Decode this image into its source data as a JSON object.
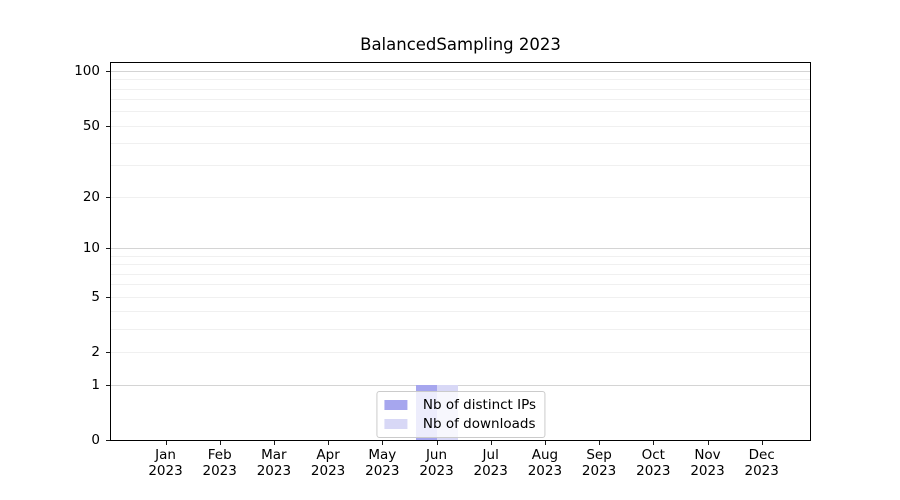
{
  "chart_data": {
    "type": "bar",
    "title": "BalancedSampling 2023",
    "categories": [
      "Jan 2023",
      "Feb 2023",
      "Mar 2023",
      "Apr 2023",
      "May 2023",
      "Jun 2023",
      "Jul 2023",
      "Aug 2023",
      "Sep 2023",
      "Oct 2023",
      "Nov 2023",
      "Dec 2023"
    ],
    "series": [
      {
        "name": "Nb of distinct IPs",
        "color": "#a6a6ee",
        "values": [
          0,
          0,
          0,
          0,
          0,
          1,
          0,
          0,
          0,
          0,
          0,
          0
        ]
      },
      {
        "name": "Nb of downloads",
        "color": "#d8d8f6",
        "values": [
          0,
          0,
          0,
          0,
          0,
          1,
          0,
          0,
          0,
          0,
          0,
          0
        ]
      }
    ],
    "xlabel": "",
    "ylabel": "",
    "yscale": "log1p",
    "ylim": [
      0,
      111
    ],
    "y_ticks": [
      100,
      50,
      20,
      10,
      5,
      2,
      1,
      0
    ],
    "y_major_gridlines": [
      1,
      10,
      100
    ],
    "y_minor_gridlines": [
      2,
      3,
      4,
      5,
      6,
      7,
      8,
      9,
      20,
      30,
      40,
      50,
      60,
      70,
      80,
      90
    ],
    "grid": true,
    "legend_position": "lower center",
    "colors": {
      "background": "#ffffff",
      "major_grid": "#d4d4d4",
      "minor_grid": "#f0f0f0",
      "axis": "#000000"
    }
  }
}
